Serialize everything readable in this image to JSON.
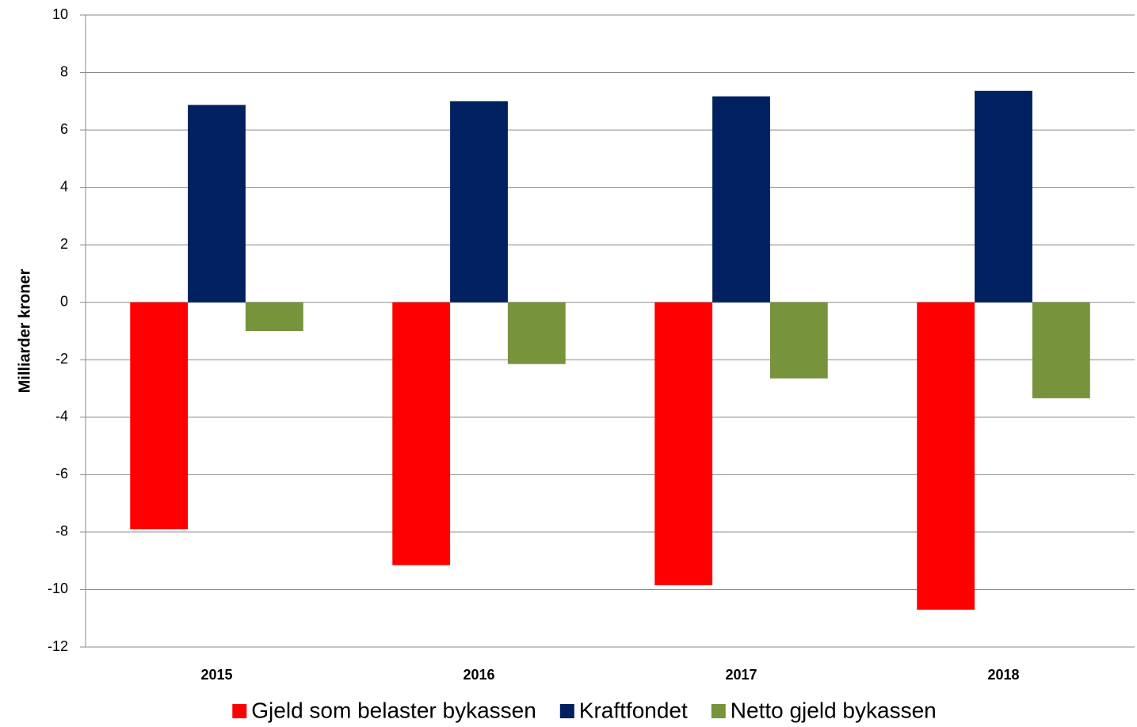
{
  "chart_data": {
    "type": "bar",
    "y_label": "Milliarder kroner",
    "categories": [
      "2015",
      "2016",
      "2017",
      "2018"
    ],
    "series": [
      {
        "name": "Gjeld som belaster bykassen",
        "color": "#ff0000",
        "values": [
          -7.9,
          -9.15,
          -9.85,
          -10.7
        ]
      },
      {
        "name": "Kraftfondet",
        "color": "#002060",
        "values": [
          6.87,
          7.0,
          7.17,
          7.36
        ]
      },
      {
        "name": "Netto gjeld bykassen",
        "color": "#77933c",
        "values": [
          -1.0,
          -2.15,
          -2.65,
          -3.34
        ]
      }
    ],
    "ylim": [
      -12,
      10
    ],
    "yticks": [
      -12,
      -10,
      -8,
      -6,
      -4,
      -2,
      0,
      2,
      4,
      6,
      8,
      10
    ],
    "grid": true,
    "legend": "bottom"
  }
}
